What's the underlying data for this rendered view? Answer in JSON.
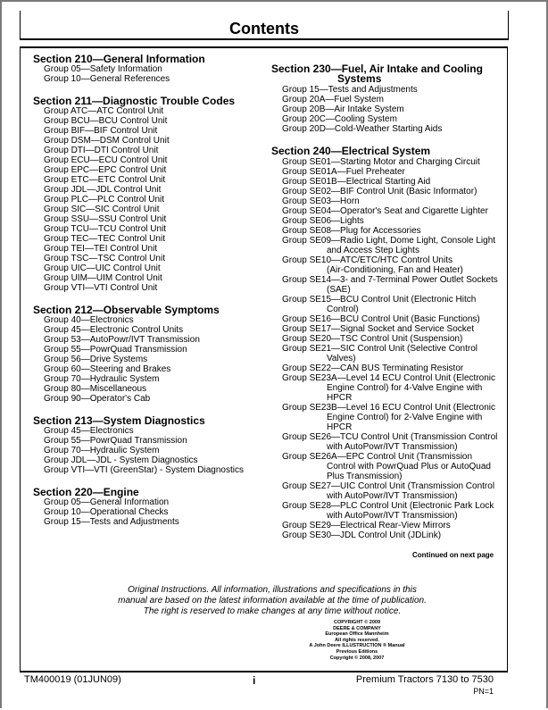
{
  "title": "Contents",
  "left_column": [
    {
      "heading": [
        "Section 210—General Information"
      ],
      "groups": [
        [
          "Group 05—Safety Information"
        ],
        [
          "Group 10—General References"
        ]
      ]
    },
    {
      "heading": [
        "Section 211—Diagnostic Trouble Codes"
      ],
      "groups": [
        [
          "Group ATC—ATC Control Unit"
        ],
        [
          "Group BCU—BCU Control Unit"
        ],
        [
          "Group BIF—BIF Control Unit"
        ],
        [
          "Group DSM—DSM Control Unit"
        ],
        [
          "Group DTI—DTI Control Unit"
        ],
        [
          "Group ECU—ECU Control Unit"
        ],
        [
          "Group EPC—EPC Control Unit"
        ],
        [
          "Group ETC—ETC Control Unit"
        ],
        [
          "Group JDL—JDL Control Unit"
        ],
        [
          "Group PLC—PLC Control Unit"
        ],
        [
          "Group SIC—SIC Control Unit"
        ],
        [
          "Group SSU—SSU Control Unit"
        ],
        [
          "Group TCU—TCU Control Unit"
        ],
        [
          "Group TEC—TEC Control Unit"
        ],
        [
          "Group TEI—TEI Control Unit"
        ],
        [
          "Group TSC—TSC Control Unit"
        ],
        [
          "Group UIC—UIC Control Unit"
        ],
        [
          "Group UIM—UIM Control Unit"
        ],
        [
          "Group VTI—VTI Control Unit"
        ]
      ]
    },
    {
      "heading": [
        "Section 212—Observable Symptoms"
      ],
      "groups": [
        [
          "Group 40—Electronics"
        ],
        [
          "Group 45—Electronic Control Units"
        ],
        [
          "Group 53—AutoPowr/IVT Transmission"
        ],
        [
          "Group 55—PowrQuad Transmission"
        ],
        [
          "Group 56—Drive Systems"
        ],
        [
          "Group 60—Steering and Brakes"
        ],
        [
          "Group 70—Hydraulic System"
        ],
        [
          "Group 80—Miscellaneous"
        ],
        [
          "Group 90—Operator's Cab"
        ]
      ]
    },
    {
      "heading": [
        "Section 213—System Diagnostics"
      ],
      "groups": [
        [
          "Group 45—Electronics"
        ],
        [
          "Group 55—PowrQuad Transmission"
        ],
        [
          "Group 70—Hydraulic System"
        ],
        [
          "Group JDL—JDL - System Diagnostics"
        ],
        [
          "Group VTI—VTI (GreenStar) - System Diagnostics"
        ]
      ]
    },
    {
      "heading": [
        "Section 220—Engine"
      ],
      "groups": [
        [
          "Group 05—General Information"
        ],
        [
          "Group 10—Operational Checks"
        ],
        [
          "Group 15—Tests and Adjustments"
        ]
      ]
    }
  ],
  "right_column": [
    {
      "heading": [
        "Section 230—Fuel, Air Intake and Cooling",
        "Systems"
      ],
      "groups": [
        [
          "Group 15—Tests and Adjustments"
        ],
        [
          "Group 20A—Fuel System"
        ],
        [
          "Group 20B—Air Intake System"
        ],
        [
          "Group 20C—Cooling System"
        ],
        [
          "Group 20D—Cold-Weather Starting Aids"
        ]
      ]
    },
    {
      "heading": [
        "Section 240—Electrical System"
      ],
      "groups": [
        [
          "Group SE01—Starting Motor and Charging Circuit"
        ],
        [
          "Group SE01A—Fuel Preheater"
        ],
        [
          "Group SE01B—Electrical Starting Aid"
        ],
        [
          "Group SE02—BIF Control Unit (Basic Informator)"
        ],
        [
          "Group SE03—Horn"
        ],
        [
          "Group SE04—Operator's Seat and Cigarette Lighter"
        ],
        [
          "Group SE06—Lights"
        ],
        [
          "Group SE08—Plug for Accessories"
        ],
        [
          "Group SE09—Radio Light, Dome Light, Console Light",
          "and Access Step Lights"
        ],
        [
          "Group SE10—ATC/ETC/HTC Control Units",
          "(Air-Conditioning, Fan and Heater)"
        ],
        [
          "Group SE14—3- and 7-Terminal Power Outlet Sockets",
          "(SAE)"
        ],
        [
          "Group SE15—BCU Control Unit (Electronic Hitch",
          "Control)"
        ],
        [
          "Group SE16—BCU Control Unit (Basic Functions)"
        ],
        [
          "Group SE17—Signal Socket and Service Socket"
        ],
        [
          "Group SE20—TSC Control Unit (Suspension)"
        ],
        [
          "Group SE21—SIC Control Unit (Selective Control",
          "Valves)"
        ],
        [
          "Group SE22—CAN BUS Terminating Resistor"
        ],
        [
          "Group SE23A—Level 14 ECU Control Unit (Electronic",
          "Engine Control) for 4-Valve Engine with",
          "HPCR"
        ],
        [
          "Group SE23B—Level 16 ECU Control Unit (Electronic",
          "Engine Control) for 2-Valve Engine with",
          "HPCR"
        ],
        [
          "Group SE26—TCU Control Unit (Transmission Control",
          "with AutoPowr/IVT Transmission)"
        ],
        [
          "Group SE26A—EPC Control Unit (Transmission",
          "Control with PowrQuad Plus or AutoQuad",
          "Plus Transmission)"
        ],
        [
          "Group SE27—UIC Control Unit (Transmission Control",
          "with AutoPowr/IVT Transmission)"
        ],
        [
          "Group SE28—PLC Control Unit (Electronic Park Lock",
          "with AutoPowr/IVT Transmission)"
        ],
        [
          "Group SE29—Electrical Rear-View Mirrors"
        ],
        [
          "Group SE30—JDL Control Unit (JDLink)"
        ]
      ]
    }
  ],
  "continued": "Continued on next page",
  "notice": [
    "Original Instructions. All information, illustrations and specifications in this",
    "manual are based on the latest information available at the time of publication.",
    "The right is reserved to make changes at any time without notice."
  ],
  "copyright": [
    "COPYRIGHT © 2009",
    "DEERE & COMPANY",
    "European Office Mannheim",
    "All rights reserved.",
    "A John Deere ILLUSTRUCTION ® Manual",
    "Previous Editions",
    "Copyright © 2008, 2007"
  ],
  "footer": {
    "doc_id": "TM400019 (01JUN09)",
    "page": "i",
    "product": "Premium Tractors 7130 to 7530",
    "pn": "PN=1"
  }
}
